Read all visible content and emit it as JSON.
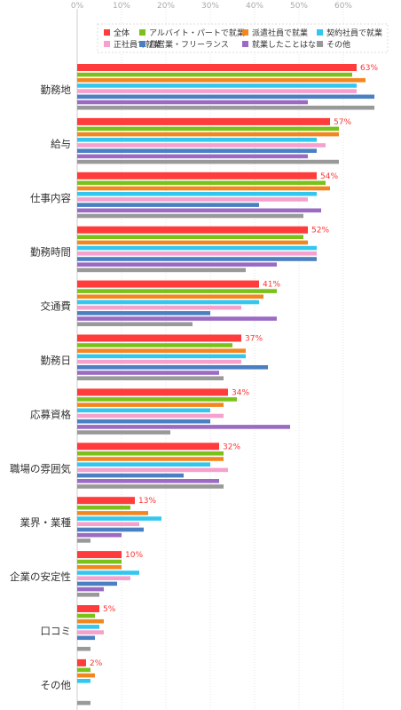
{
  "chart_data": {
    "type": "bar",
    "orientation": "horizontal",
    "xlim": [
      0,
      65
    ],
    "ticks": [
      "0%",
      "10%",
      "20%",
      "30%",
      "40%",
      "50%",
      "60%"
    ],
    "grid": true,
    "legend_position": "top-right",
    "categories": [
      "勤務地",
      "給与",
      "仕事内容",
      "勤務時間",
      "交通費",
      "勤務日",
      "応募資格",
      "職場の雰囲気",
      "業界・業種",
      "企業の安定性",
      "口コミ",
      "その他"
    ],
    "value_labels": [
      "63%",
      "57%",
      "54%",
      "52%",
      "41%",
      "37%",
      "34%",
      "32%",
      "13%",
      "10%",
      "5%",
      "2%"
    ],
    "series": [
      {
        "name": "全体",
        "color": "#ff3b3b",
        "values": [
          63,
          57,
          54,
          52,
          41,
          37,
          34,
          32,
          13,
          10,
          5,
          2
        ]
      },
      {
        "name": "アルバイト・パートで就業",
        "color": "#7ac21a",
        "values": [
          62,
          59,
          56,
          51,
          45,
          35,
          36,
          33,
          12,
          10,
          4,
          3
        ]
      },
      {
        "name": "派遣社員で就業",
        "color": "#f3871f",
        "values": [
          65,
          59,
          57,
          52,
          42,
          38,
          33,
          33,
          16,
          10,
          6,
          4
        ]
      },
      {
        "name": "契約社員で就業",
        "color": "#33c7f0",
        "values": [
          63,
          54,
          54,
          54,
          41,
          38,
          30,
          30,
          19,
          14,
          5,
          3
        ]
      },
      {
        "name": "正社員で就業",
        "color": "#f5a0cd",
        "values": [
          63,
          56,
          52,
          54,
          37,
          37,
          33,
          34,
          14,
          12,
          6,
          0
        ]
      },
      {
        "name": "自営業・フリーランス",
        "color": "#4a7fc1",
        "values": [
          67,
          54,
          41,
          54,
          30,
          43,
          30,
          24,
          15,
          9,
          4,
          0
        ]
      },
      {
        "name": "就業したことはない",
        "color": "#9b6bc4",
        "values": [
          52,
          52,
          55,
          45,
          45,
          32,
          48,
          32,
          10,
          6,
          0,
          0
        ]
      },
      {
        "name": "その他",
        "color": "#999999",
        "values": [
          67,
          59,
          51,
          38,
          26,
          33,
          21,
          33,
          3,
          5,
          3,
          3
        ]
      }
    ]
  }
}
